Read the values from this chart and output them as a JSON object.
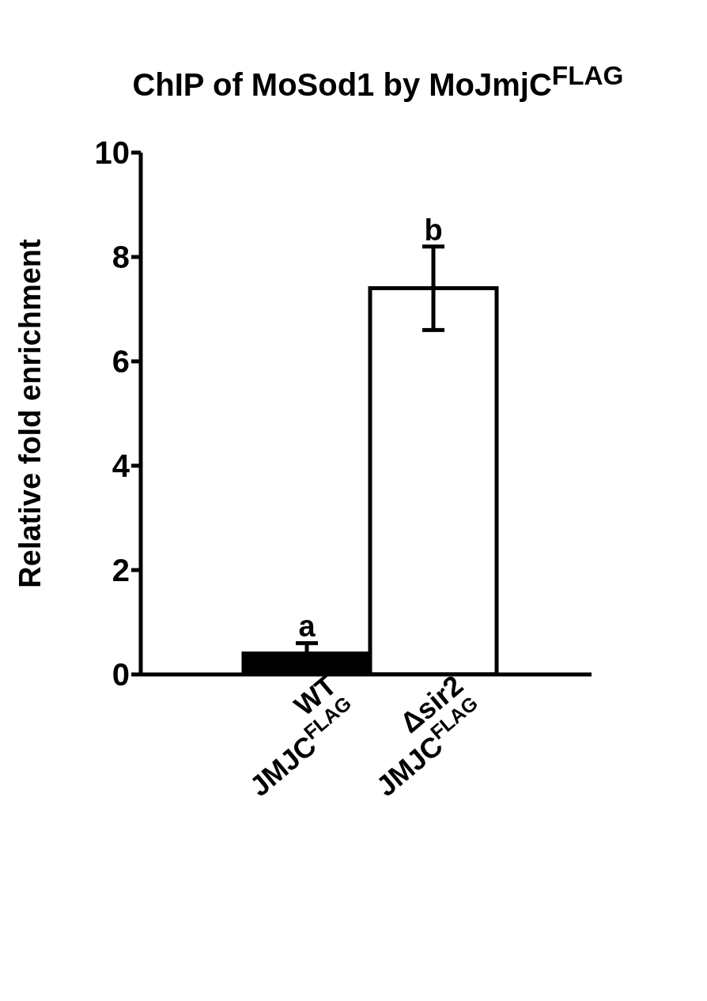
{
  "chart_data": {
    "type": "bar",
    "title": "ChIP of MoSod1 by MoJmjC$^{FLAG}$",
    "ylabel": "Relative fold enrichment",
    "categories": [
      "WT\nJMJC$^{FLAG}$",
      "Δsir2\nJMJC$^{FLAG}$"
    ],
    "values": [
      0.4,
      7.4
    ],
    "errors": [
      0.2,
      0.8
    ],
    "colors": [
      "#000000",
      "#ffffff"
    ],
    "ylim": [
      0,
      10
    ],
    "yticks": [
      0,
      2,
      4,
      6,
      8,
      10
    ],
    "grid": false,
    "legend": false,
    "annotations": [
      {
        "text": "a",
        "x": "WT\nJMJC$^{FLAG}$",
        "y": 0.6
      },
      {
        "text": "b",
        "x": "Δsir2\nJMJC$^{FLAG}$",
        "y": 8.2
      }
    ]
  }
}
